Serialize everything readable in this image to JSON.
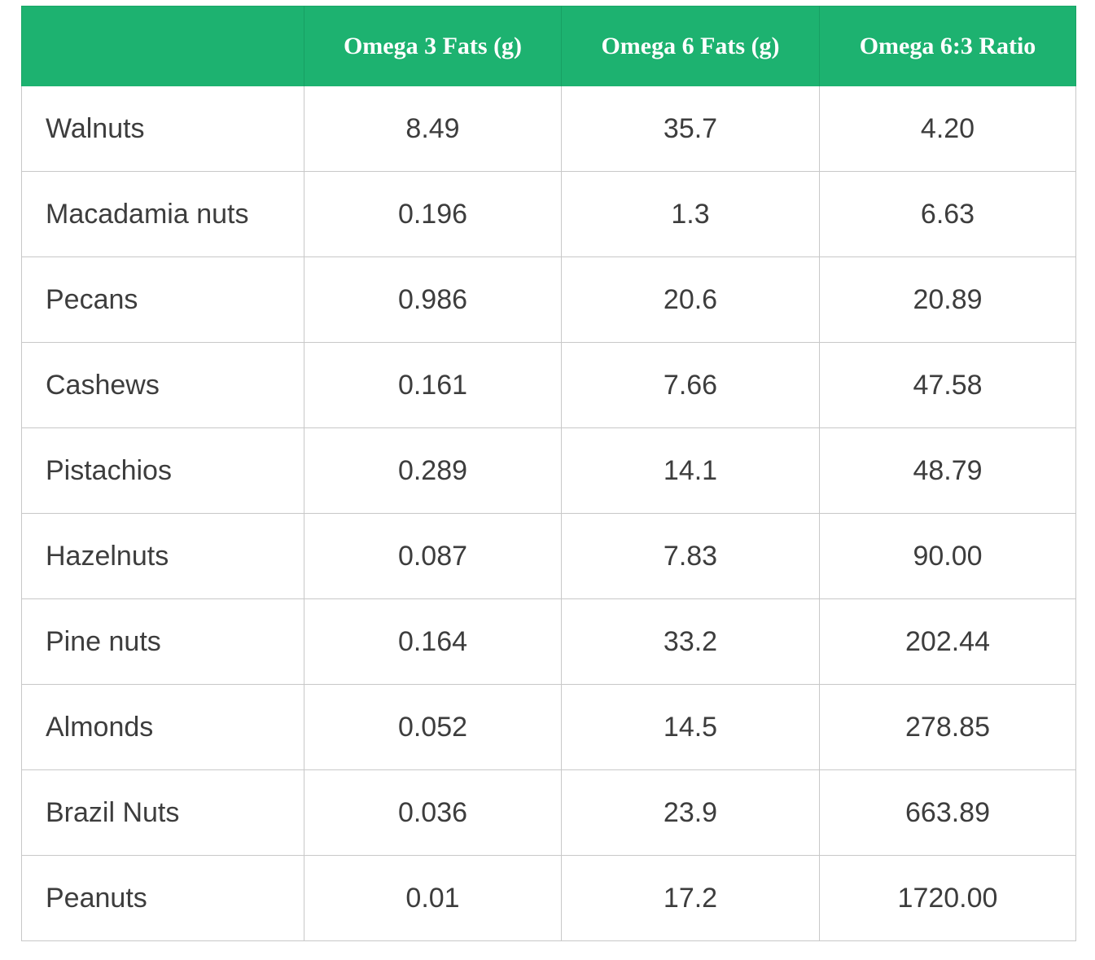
{
  "table": {
    "headers": [
      "",
      "Omega 3 Fats (g)",
      "Omega 6 Fats (g)",
      "Omega 6:3 Ratio"
    ],
    "rows": [
      {
        "name": "Walnuts",
        "omega3": "8.49",
        "omega6": "35.7",
        "ratio": "4.20"
      },
      {
        "name": "Macadamia nuts",
        "omega3": "0.196",
        "omega6": "1.3",
        "ratio": "6.63"
      },
      {
        "name": "Pecans",
        "omega3": "0.986",
        "omega6": "20.6",
        "ratio": "20.89"
      },
      {
        "name": "Cashews",
        "omega3": "0.161",
        "omega6": "7.66",
        "ratio": "47.58"
      },
      {
        "name": "Pistachios",
        "omega3": "0.289",
        "omega6": "14.1",
        "ratio": "48.79"
      },
      {
        "name": "Hazelnuts",
        "omega3": "0.087",
        "omega6": "7.83",
        "ratio": "90.00"
      },
      {
        "name": "Pine nuts",
        "omega3": "0.164",
        "omega6": "33.2",
        "ratio": "202.44"
      },
      {
        "name": "Almonds",
        "omega3": "0.052",
        "omega6": "14.5",
        "ratio": "278.85"
      },
      {
        "name": "Brazil Nuts",
        "omega3": "0.036",
        "omega6": "23.9",
        "ratio": "663.89"
      },
      {
        "name": "Peanuts",
        "omega3": "0.01",
        "omega6": "17.2",
        "ratio": "1720.00"
      }
    ]
  },
  "colors": {
    "header_bg": "#1db270",
    "header_text": "#ffffff",
    "body_text": "#3d3d3d",
    "grid": "#c8c8c8"
  }
}
